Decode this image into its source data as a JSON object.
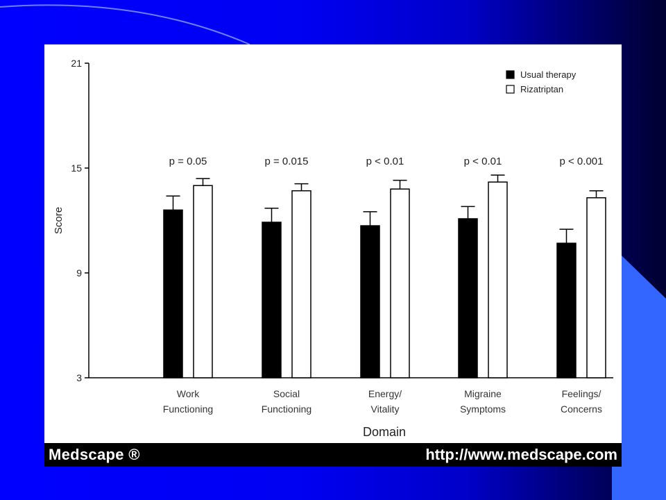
{
  "slide": {
    "background_colors": [
      "#0000ff",
      "#000030"
    ],
    "accent_color": "#3366ff"
  },
  "footer": {
    "brand": "Medscape ®",
    "url": "http://www.medscape.com"
  },
  "chart_data": {
    "type": "bar",
    "title": "",
    "xlabel": "Domain",
    "ylabel": "Score",
    "ylim": [
      3,
      21
    ],
    "yticks": [
      3,
      9,
      15,
      21
    ],
    "grid": false,
    "legend_position": "top-right",
    "categories": [
      [
        "Work",
        "Functioning"
      ],
      [
        "Social",
        "Functioning"
      ],
      [
        "Energy/",
        "Vitality"
      ],
      [
        "Migraine",
        "Symptoms"
      ],
      [
        "Feelings/",
        "Concerns"
      ]
    ],
    "series": [
      {
        "name": "Usual therapy",
        "color": "#000000",
        "values": [
          12.6,
          11.9,
          11.7,
          12.1,
          10.7
        ],
        "error": [
          0.8,
          0.8,
          0.8,
          0.7,
          0.8
        ]
      },
      {
        "name": "Rizatriptan",
        "color": "#ffffff",
        "values": [
          14.0,
          13.7,
          13.8,
          14.2,
          13.3
        ],
        "error": [
          0.4,
          0.4,
          0.5,
          0.4,
          0.4
        ]
      }
    ],
    "annotations": [
      "p = 0.05",
      "p = 0.015",
      "p < 0.01",
      "p < 0.01",
      "p < 0.001"
    ]
  }
}
